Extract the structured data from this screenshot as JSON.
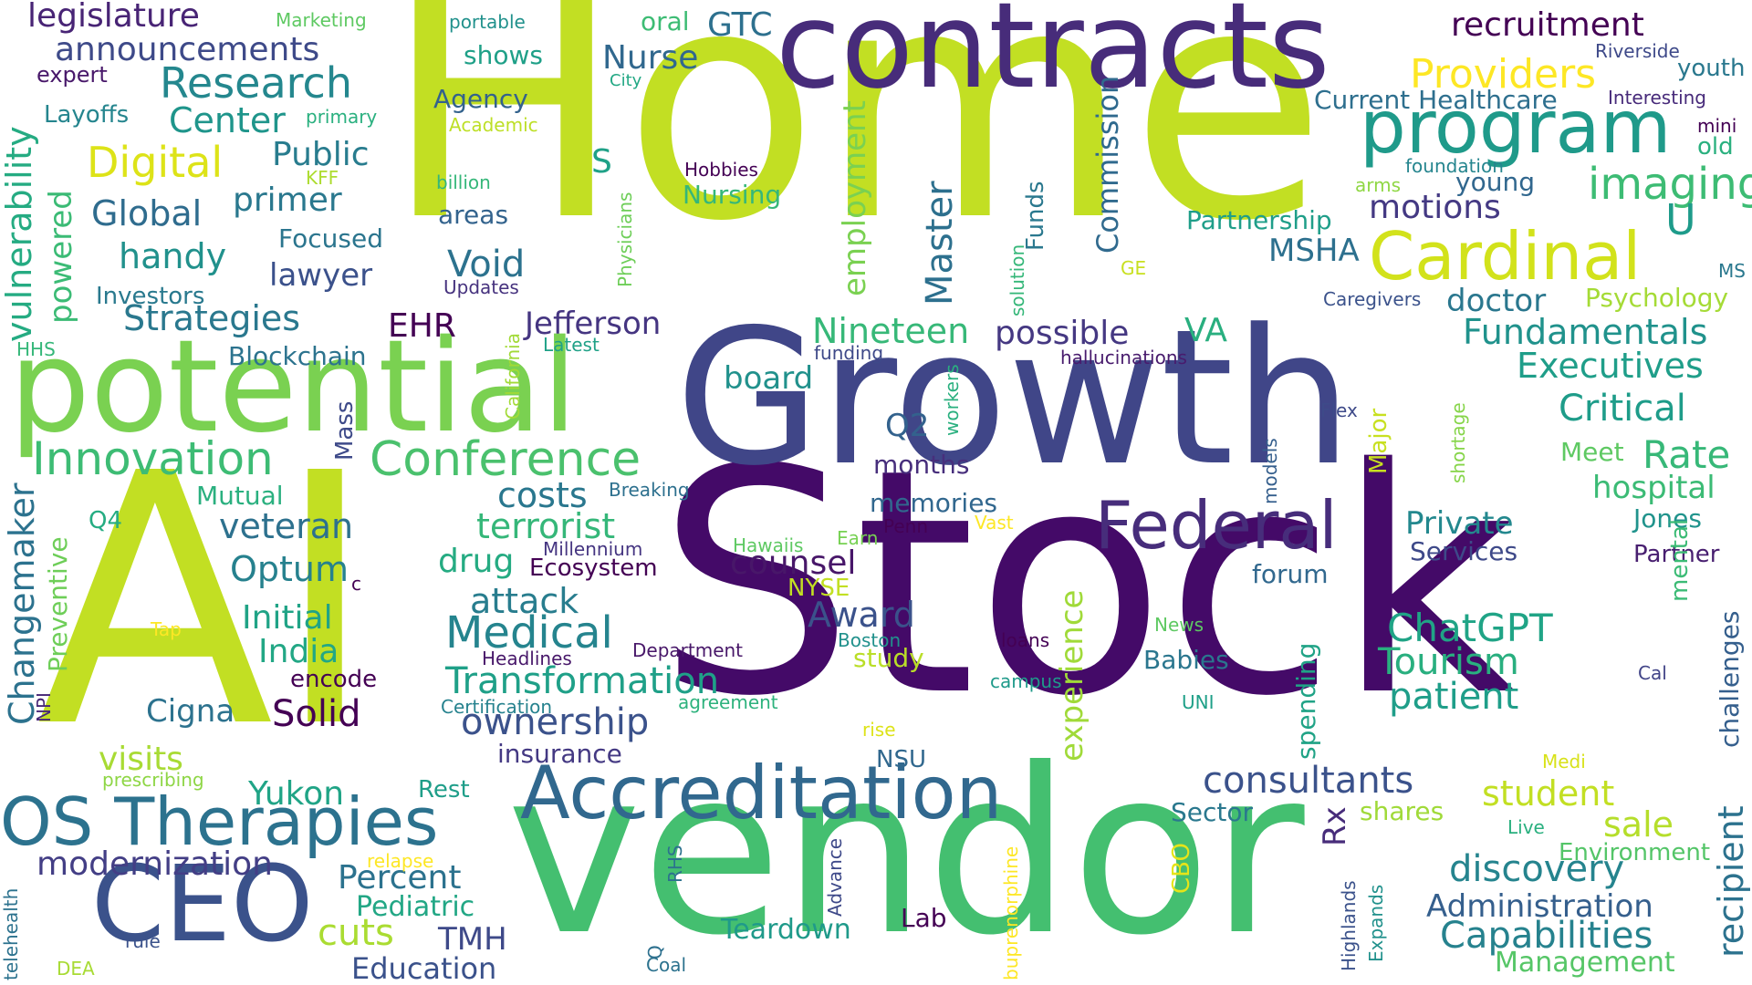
{
  "word_cloud": {
    "words": [
      {
        "text": "Home",
        "color": "#c2df23"
      },
      {
        "text": "Stock",
        "color": "#440a68"
      },
      {
        "text": "AI",
        "color": "#c2df23"
      },
      {
        "text": "vendor",
        "color": "#44bf70"
      },
      {
        "text": "Growth",
        "color": "#404688"
      },
      {
        "text": "contracts",
        "color": "#472c7a"
      },
      {
        "text": "potential",
        "color": "#7ad151"
      },
      {
        "text": "CEO",
        "color": "#3b528b"
      },
      {
        "text": "Accreditation",
        "color": "#31688e"
      },
      {
        "text": "OS Therapies",
        "color": "#2c728e"
      },
      {
        "text": "program",
        "color": "#1f9a8a"
      },
      {
        "text": "Cardinal",
        "color": "#d2e21b"
      },
      {
        "text": "Federal",
        "color": "#472d7b"
      },
      {
        "text": "Conference",
        "color": "#4ac16d"
      },
      {
        "text": "Innovation",
        "color": "#3dbc74"
      },
      {
        "text": "Research",
        "color": "#24878e"
      },
      {
        "text": "Medical",
        "color": "#25848e"
      },
      {
        "text": "ChatGPT",
        "color": "#20a486"
      },
      {
        "text": "imaging",
        "color": "#3dbc74"
      },
      {
        "text": "Digital",
        "color": "#dde318"
      },
      {
        "text": "recruitment",
        "color": "#440154"
      },
      {
        "text": "Providers",
        "color": "#fde725"
      },
      {
        "text": "legislature",
        "color": "#482475"
      },
      {
        "text": "announcements",
        "color": "#3e4a89"
      },
      {
        "text": "Nurse",
        "color": "#31688e"
      },
      {
        "text": "GTC",
        "color": "#2d708e"
      },
      {
        "text": "Current Healthcare",
        "color": "#2e6f8e"
      },
      {
        "text": "Global",
        "color": "#2f6c8e"
      },
      {
        "text": "Center",
        "color": "#1f958b"
      },
      {
        "text": "Public",
        "color": "#287c8e"
      },
      {
        "text": "primer",
        "color": "#2a788e"
      },
      {
        "text": "handy",
        "color": "#21918c"
      },
      {
        "text": "Focused",
        "color": "#2b758e"
      },
      {
        "text": "lawyer",
        "color": "#3b518b"
      },
      {
        "text": "Strategies",
        "color": "#2a788e"
      },
      {
        "text": "Investors",
        "color": "#29798e"
      },
      {
        "text": "Blockchain",
        "color": "#2c738e"
      },
      {
        "text": "EHR",
        "color": "#440154"
      },
      {
        "text": "Jefferson",
        "color": "#453581"
      },
      {
        "text": "Void",
        "color": "#2c728e"
      },
      {
        "text": "areas",
        "color": "#33638d"
      },
      {
        "text": "Agency",
        "color": "#33628d"
      },
      {
        "text": "shows",
        "color": "#1fa088"
      },
      {
        "text": "portable",
        "color": "#21918c"
      },
      {
        "text": "oral",
        "color": "#3dbc74"
      },
      {
        "text": "Marketing",
        "color": "#5ec962"
      },
      {
        "text": "expert",
        "color": "#48186a"
      },
      {
        "text": "Layoffs",
        "color": "#25858e"
      },
      {
        "text": "primary",
        "color": "#2ab07f"
      },
      {
        "text": "Academic",
        "color": "#bddf26"
      },
      {
        "text": "billion",
        "color": "#35b779"
      },
      {
        "text": "KFF",
        "color": "#addc30"
      },
      {
        "text": "City",
        "color": "#22a884"
      },
      {
        "text": "S",
        "color": "#1fa187"
      },
      {
        "text": "Nursing",
        "color": "#35b779"
      },
      {
        "text": "Hobbies",
        "color": "#440154"
      },
      {
        "text": "Updates",
        "color": "#46327e"
      },
      {
        "text": "Latest",
        "color": "#1fa187"
      },
      {
        "text": "funding",
        "color": "#3e4989"
      },
      {
        "text": "hallucinations",
        "color": "#481b6d"
      },
      {
        "text": "Nineteen",
        "color": "#37b878"
      },
      {
        "text": "possible",
        "color": "#453882"
      },
      {
        "text": "VA",
        "color": "#29af7f"
      },
      {
        "text": "board",
        "color": "#21918c"
      },
      {
        "text": "motions",
        "color": "#443983"
      },
      {
        "text": "young",
        "color": "#31678e"
      },
      {
        "text": "foundation",
        "color": "#25858e"
      },
      {
        "text": "Partnership",
        "color": "#1f9e89"
      },
      {
        "text": "MSHA",
        "color": "#2d708e"
      },
      {
        "text": "U",
        "color": "#1e9b8a"
      },
      {
        "text": "doctor",
        "color": "#2a778e"
      },
      {
        "text": "Psychology",
        "color": "#a5db36"
      },
      {
        "text": "Caregivers",
        "color": "#3b528b"
      },
      {
        "text": "Fundamentals",
        "color": "#20928c"
      },
      {
        "text": "Executives",
        "color": "#1f9e89"
      },
      {
        "text": "Critical",
        "color": "#1e9c89"
      },
      {
        "text": "Rate",
        "color": "#37b878"
      },
      {
        "text": "hospital",
        "color": "#3bbb75"
      },
      {
        "text": "Jones",
        "color": "#20938c"
      },
      {
        "text": "Partner",
        "color": "#481f70"
      },
      {
        "text": "Meet",
        "color": "#5ec962"
      },
      {
        "text": "Flex",
        "color": "#3e4a89"
      },
      {
        "text": "Private",
        "color": "#23888e"
      },
      {
        "text": "Services",
        "color": "#3e4989"
      },
      {
        "text": "forum",
        "color": "#31688e"
      },
      {
        "text": "Q2",
        "color": "#33628d"
      },
      {
        "text": "months",
        "color": "#472e7c"
      },
      {
        "text": "memories",
        "color": "#31678e"
      },
      {
        "text": "costs",
        "color": "#2a778e"
      },
      {
        "text": "Breaking",
        "color": "#2d708e"
      },
      {
        "text": "terrorist",
        "color": "#35b779"
      },
      {
        "text": "veteran",
        "color": "#2d718e"
      },
      {
        "text": "Mutual",
        "color": "#2ab07f"
      },
      {
        "text": "Q4",
        "color": "#25ac82"
      },
      {
        "text": "Optum",
        "color": "#26818e"
      },
      {
        "text": "drug",
        "color": "#25ab82"
      },
      {
        "text": "Ecosystem",
        "color": "#440154"
      },
      {
        "text": "Millennium",
        "color": "#453581"
      },
      {
        "text": "counsel",
        "color": "#481769"
      },
      {
        "text": "attack",
        "color": "#287d8e"
      },
      {
        "text": "Initial",
        "color": "#20a386"
      },
      {
        "text": "India",
        "color": "#22a785"
      },
      {
        "text": "Tap",
        "color": "#fde725"
      },
      {
        "text": "encode",
        "color": "#440154"
      },
      {
        "text": "Cigna",
        "color": "#2c728e"
      },
      {
        "text": "Solid",
        "color": "#440154"
      },
      {
        "text": "visits",
        "color": "#a8db34"
      },
      {
        "text": "prescribing",
        "color": "#8ed645"
      },
      {
        "text": "Yukon",
        "color": "#20a486"
      },
      {
        "text": "Rest",
        "color": "#1f9e89"
      },
      {
        "text": "Headlines",
        "color": "#48186a"
      },
      {
        "text": "Certification",
        "color": "#26828e"
      },
      {
        "text": "Department",
        "color": "#481769"
      },
      {
        "text": "Transformation",
        "color": "#1fa088"
      },
      {
        "text": "ownership",
        "color": "#3b528b"
      },
      {
        "text": "insurance",
        "color": "#443983"
      },
      {
        "text": "Award",
        "color": "#3b528b"
      },
      {
        "text": "Boston",
        "color": "#21918c"
      },
      {
        "text": "study",
        "color": "#bade28"
      },
      {
        "text": "agreement",
        "color": "#2db27d"
      },
      {
        "text": "rise",
        "color": "#dde318"
      },
      {
        "text": "NSU",
        "color": "#31688e"
      },
      {
        "text": "Hawaiis",
        "color": "#5ec962"
      },
      {
        "text": "Earn",
        "color": "#77d153"
      },
      {
        "text": "Vast",
        "color": "#fde725"
      },
      {
        "text": "Penn",
        "color": "#440154"
      },
      {
        "text": "NYSE",
        "color": "#c2df23"
      },
      {
        "text": "loans",
        "color": "#440154"
      },
      {
        "text": "campus",
        "color": "#1f9a8a"
      },
      {
        "text": "News",
        "color": "#5ec962"
      },
      {
        "text": "UNI",
        "color": "#1fa088"
      },
      {
        "text": "Babies",
        "color": "#2a768e"
      },
      {
        "text": "Tourism",
        "color": "#29af7f"
      },
      {
        "text": "patient",
        "color": "#1f9e89"
      },
      {
        "text": "Cal",
        "color": "#414487"
      },
      {
        "text": "Medi",
        "color": "#d8e219"
      },
      {
        "text": "consultants",
        "color": "#3b528b"
      },
      {
        "text": "student",
        "color": "#c2df23"
      },
      {
        "text": "sale",
        "color": "#b5de2b"
      },
      {
        "text": "shares",
        "color": "#a0da39"
      },
      {
        "text": "Sector",
        "color": "#2a788e"
      },
      {
        "text": "Live",
        "color": "#2ab07f"
      },
      {
        "text": "Environment",
        "color": "#54c568"
      },
      {
        "text": "discovery",
        "color": "#25848e"
      },
      {
        "text": "Administration",
        "color": "#355f8d"
      },
      {
        "text": "Capabilities",
        "color": "#26828e"
      },
      {
        "text": "Management",
        "color": "#56c667"
      },
      {
        "text": "Teardown",
        "color": "#1f9a8a"
      },
      {
        "text": "Lab",
        "color": "#440154"
      },
      {
        "text": "Q",
        "color": "#2d708e"
      },
      {
        "text": "Coal",
        "color": "#2c728e"
      },
      {
        "text": "modernization",
        "color": "#433e85"
      },
      {
        "text": "Percent",
        "color": "#2c728e"
      },
      {
        "text": "Pediatric",
        "color": "#22a785"
      },
      {
        "text": "cuts",
        "color": "#aadc32"
      },
      {
        "text": "TMH",
        "color": "#3e4989"
      },
      {
        "text": "Education",
        "color": "#3b528b"
      },
      {
        "text": "relapse",
        "color": "#fde725"
      },
      {
        "text": "rule",
        "color": "#3b528b"
      },
      {
        "text": "DEA",
        "color": "#a8db34"
      },
      {
        "text": "Riverside",
        "color": "#3e4989"
      },
      {
        "text": "youth",
        "color": "#2a788e"
      },
      {
        "text": "Interesting",
        "color": "#472a7a"
      },
      {
        "text": "mini",
        "color": "#440154"
      },
      {
        "text": "old",
        "color": "#2ab07f"
      },
      {
        "text": "arms",
        "color": "#8fd744"
      },
      {
        "text": "GE",
        "color": "#c8e020"
      },
      {
        "text": "MS",
        "color": "#2a788e"
      },
      {
        "text": "vulnerability",
        "color": "#25ab82"
      },
      {
        "text": "powered",
        "color": "#3bbb75"
      },
      {
        "text": "HHS",
        "color": "#35b779"
      },
      {
        "text": "Changemaker",
        "color": "#2c728e"
      },
      {
        "text": "Preventive",
        "color": "#6ece58"
      },
      {
        "text": "NPI",
        "color": "#482878"
      },
      {
        "text": "telehealth",
        "color": "#2c728e"
      },
      {
        "text": "Mass",
        "color": "#3e4a89"
      },
      {
        "text": "California",
        "color": "#a2da37"
      },
      {
        "text": "Physicians",
        "color": "#6ece58"
      },
      {
        "text": "c",
        "color": "#440154"
      },
      {
        "text": "employment",
        "color": "#7ad151"
      },
      {
        "text": "Master",
        "color": "#2d708e"
      },
      {
        "text": "Commission",
        "color": "#306a8e"
      },
      {
        "text": "Funds",
        "color": "#2a788e"
      },
      {
        "text": "solution",
        "color": "#35b779"
      },
      {
        "text": "workers",
        "color": "#2ab07f"
      },
      {
        "text": "experience",
        "color": "#a0da39"
      },
      {
        "text": "Major",
        "color": "#c8e020"
      },
      {
        "text": "models",
        "color": "#355f8d"
      },
      {
        "text": "shortage",
        "color": "#86d549"
      },
      {
        "text": "spending",
        "color": "#20a386"
      },
      {
        "text": "Rx",
        "color": "#472c7a"
      },
      {
        "text": "Advance",
        "color": "#3e4989"
      },
      {
        "text": "RHS",
        "color": "#2c728e"
      },
      {
        "text": "buprenorphine",
        "color": "#fde725"
      },
      {
        "text": "CBO",
        "color": "#e5e419"
      },
      {
        "text": "Highlands",
        "color": "#3b528b"
      },
      {
        "text": "Expands",
        "color": "#21918c"
      },
      {
        "text": "recipient",
        "color": "#2c728e"
      },
      {
        "text": "mental",
        "color": "#3bbb75"
      },
      {
        "text": "challenges",
        "color": "#355f8d"
      }
    ]
  }
}
